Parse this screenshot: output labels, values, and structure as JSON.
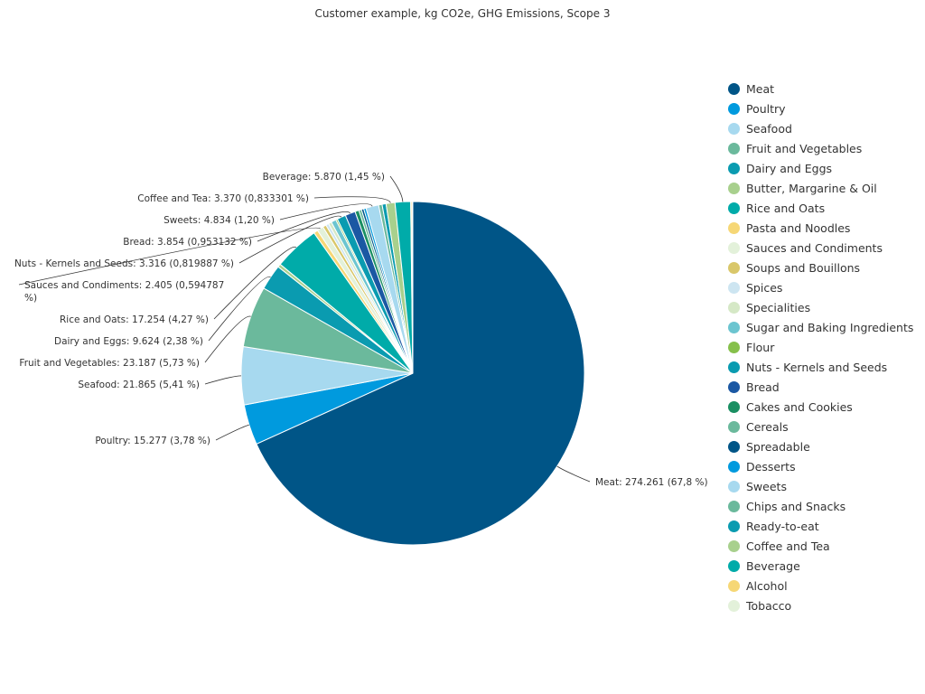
{
  "chart_data": {
    "type": "pie",
    "title": "Customer example, kg CO2e, GHG Emissions, Scope 3",
    "legend_position": "right",
    "slices": [
      {
        "name": "Meat",
        "value": 274.261,
        "color": "#005587",
        "label": "Meat: 274.261 (67,8 %)"
      },
      {
        "name": "Poultry",
        "value": 15.277,
        "color": "#009ADE",
        "label": "Poultry: 15.277 (3,78 %)"
      },
      {
        "name": "Seafood",
        "value": 21.865,
        "color": "#A7D9EF",
        "label": "Seafood: 21.865 (5,41 %)"
      },
      {
        "name": "Fruit and Vegetables",
        "value": 23.187,
        "color": "#6BB99C",
        "label": "Fruit and Vegetables: 23.187 (5,73 %)"
      },
      {
        "name": "Dairy and Eggs",
        "value": 9.624,
        "color": "#0A9BB0",
        "label": "Dairy and Eggs: 9.624 (2,38 %)"
      },
      {
        "name": "Butter, Margarine & Oil",
        "value": 1.2,
        "color": "#A8D08D",
        "label": ""
      },
      {
        "name": "Rice and Oats",
        "value": 17.254,
        "color": "#00ABA9",
        "label": "Rice and Oats: 17.254 (4,27 %)"
      },
      {
        "name": "Pasta and Noodles",
        "value": 1.6,
        "color": "#F6D776",
        "label": ""
      },
      {
        "name": "Sauces and Condiments",
        "value": 2.405,
        "color": "#E3F1DA",
        "label": "Sauces and Condiments: 2.405 (0,594787 %)"
      },
      {
        "name": "Soups and Bouillons",
        "value": 1.3,
        "color": "#D9C76A",
        "label": ""
      },
      {
        "name": "Spices",
        "value": 1.1,
        "color": "#CDE5F1",
        "label": ""
      },
      {
        "name": "Specialities",
        "value": 1.2,
        "color": "#D5E8C6",
        "label": ""
      },
      {
        "name": "Sugar and Baking Ingredients",
        "value": 1.9,
        "color": "#6CC5D0",
        "label": ""
      },
      {
        "name": "Flour",
        "value": 0.6,
        "color": "#86C04B",
        "label": ""
      },
      {
        "name": "Nuts - Kernels and Seeds",
        "value": 3.316,
        "color": "#0A9BB0",
        "label": "Nuts - Kernels and Seeds: 3.316 (0,819887 %)"
      },
      {
        "name": "Bread",
        "value": 3.854,
        "color": "#1B58A3",
        "label": "Bread: 3.854 (0,953132 %)"
      },
      {
        "name": "Cakes and Cookies",
        "value": 1.5,
        "color": "#1A8F62",
        "label": ""
      },
      {
        "name": "Cereals",
        "value": 1.0,
        "color": "#6BB99C",
        "label": ""
      },
      {
        "name": "Spreadable",
        "value": 0.9,
        "color": "#005587",
        "label": ""
      },
      {
        "name": "Desserts",
        "value": 0.9,
        "color": "#009ADE",
        "label": ""
      },
      {
        "name": "Sweets",
        "value": 4.834,
        "color": "#A7D9EF",
        "label": "Sweets: 4.834 (1,20 %)"
      },
      {
        "name": "Chips and Snacks",
        "value": 1.3,
        "color": "#6BB99C",
        "label": ""
      },
      {
        "name": "Ready-to-eat",
        "value": 1.5,
        "color": "#0A9BB0",
        "label": ""
      },
      {
        "name": "Coffee and Tea",
        "value": 3.37,
        "color": "#A8D08D",
        "label": "Coffee and Tea: 3.370 (0,833301 %)"
      },
      {
        "name": "Beverage",
        "value": 5.87,
        "color": "#00ABA9",
        "label": "Beverage: 5.870 (1,45 %)"
      },
      {
        "name": "Alcohol",
        "value": 0.5,
        "color": "#F6D776",
        "label": ""
      },
      {
        "name": "Tobacco",
        "value": 0.3,
        "color": "#E3F1DA",
        "label": ""
      }
    ]
  }
}
